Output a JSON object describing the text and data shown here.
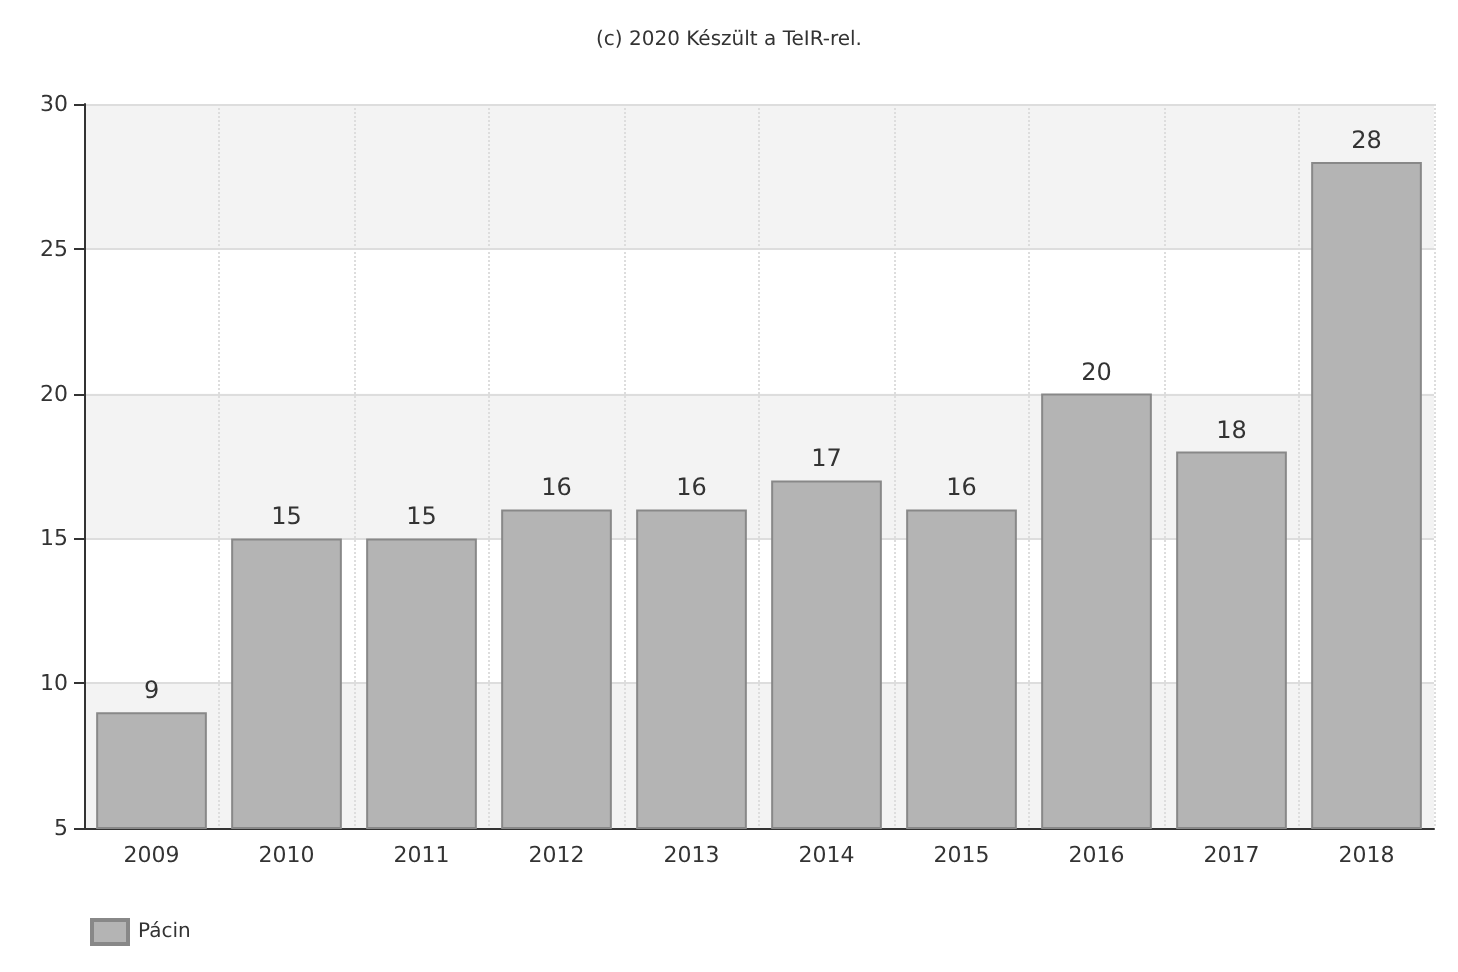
{
  "chart_data": {
    "type": "bar",
    "title": "(c) 2020 Készült a TeIR-rel.",
    "categories": [
      "2009",
      "2010",
      "2011",
      "2012",
      "2013",
      "2014",
      "2015",
      "2016",
      "2017",
      "2018"
    ],
    "series": [
      {
        "name": "Pácin",
        "color": "#b4b4b4",
        "values": [
          9,
          15,
          15,
          16,
          16,
          17,
          16,
          20,
          18,
          28
        ]
      }
    ],
    "ylim": [
      5,
      30
    ],
    "yticks": [
      5,
      10,
      15,
      20,
      25,
      30
    ],
    "grid": true,
    "legend": "bottom left",
    "data_labels": true
  }
}
